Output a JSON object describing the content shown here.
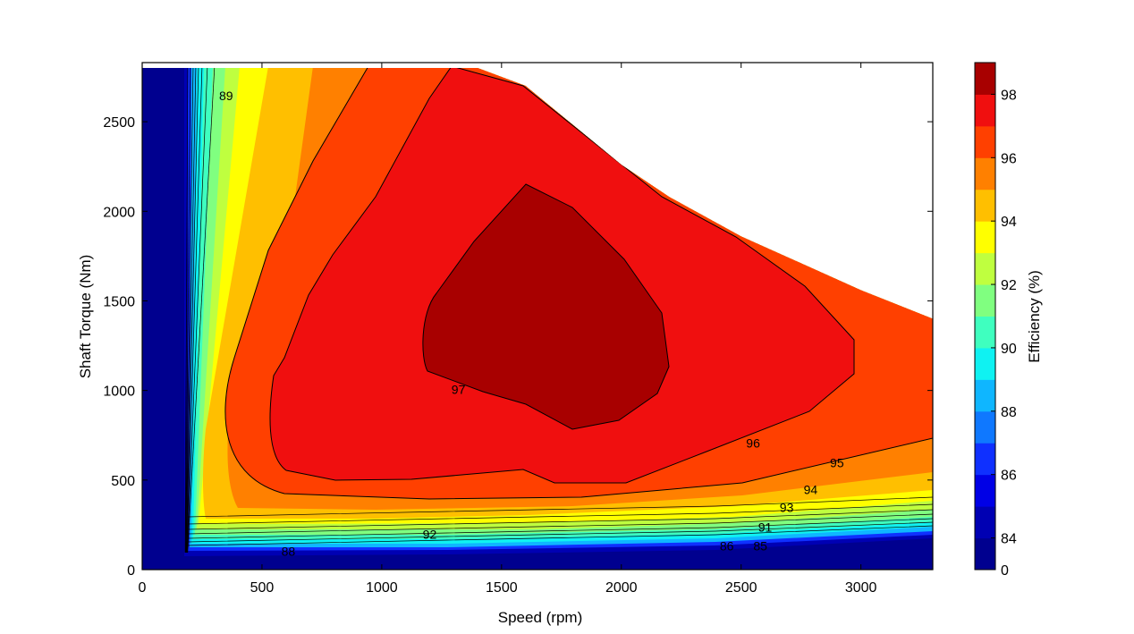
{
  "chart_data": {
    "type": "contour",
    "title": "",
    "xlabel": "Speed (rpm)",
    "ylabel": "Shaft Torque (Nm)",
    "xlim": [
      0,
      3300
    ],
    "ylim": [
      0,
      2830
    ],
    "xticks": [
      "0",
      "500",
      "1000",
      "1500",
      "2000",
      "2500",
      "3000"
    ],
    "yticks": [
      "0",
      "500",
      "1000",
      "1500",
      "2000",
      "2500"
    ],
    "grid": false,
    "colorbar": {
      "label": "Efficiency (%)",
      "levels": [
        0,
        84,
        85,
        86,
        87,
        88,
        89,
        90,
        91,
        92,
        93,
        94,
        95,
        96,
        97,
        98
      ],
      "tick_labels": [
        "0",
        "84",
        "86",
        "88",
        "90",
        "92",
        "94",
        "96",
        "98"
      ],
      "colors": [
        "#00008f",
        "#0000b3",
        "#0000e6",
        "#0f30ff",
        "#0f78ff",
        "#0fb6ff",
        "#0ff2f2",
        "#3fffbf",
        "#80ff80",
        "#bfff3f",
        "#ffff00",
        "#ffbf00",
        "#ff8000",
        "#ff4000",
        "#f00f0f",
        "#a80000"
      ]
    },
    "torque_limit_curve": {
      "x": [
        0,
        1400,
        1600,
        2000,
        2200,
        2500,
        3000,
        3300
      ],
      "y": [
        2800,
        2800,
        2700,
        2260,
        2080,
        1860,
        1560,
        1400
      ]
    },
    "contour_labels": [
      {
        "text": "97",
        "x": 1320,
        "y": 1000
      },
      {
        "text": "96",
        "x": 2550,
        "y": 700
      },
      {
        "text": "95",
        "x": 2900,
        "y": 590
      },
      {
        "text": "94",
        "x": 2790,
        "y": 440
      },
      {
        "text": "93",
        "x": 2690,
        "y": 340
      },
      {
        "text": "92",
        "x": 1200,
        "y": 190
      },
      {
        "text": "91",
        "x": 2600,
        "y": 230
      },
      {
        "text": "89",
        "x": 350,
        "y": 2640
      },
      {
        "text": "88",
        "x": 610,
        "y": 95
      },
      {
        "text": "86",
        "x": 2440,
        "y": 125
      },
      {
        "text": "85",
        "x": 2580,
        "y": 125
      }
    ]
  }
}
